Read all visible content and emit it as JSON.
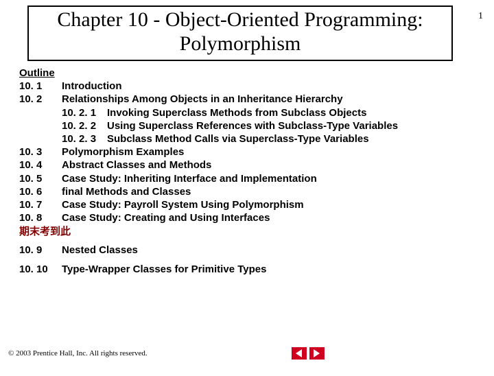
{
  "page_number": "1",
  "title": "Chapter 10 - Object-Oriented Programming: Polymorphism",
  "outline_heading": "Outline",
  "rows": [
    {
      "section": "10. 1",
      "sub": "",
      "text": "Introduction"
    },
    {
      "section": "10. 2",
      "sub": "",
      "text": "Relationships Among Objects in an Inheritance Hierarchy"
    },
    {
      "section": "",
      "sub": "10. 2. 1",
      "text": "Invoking Superclass Methods from Subclass Objects"
    },
    {
      "section": "",
      "sub": "10. 2. 2",
      "text": "Using Superclass References with Subclass-Type Variables"
    },
    {
      "section": "",
      "sub": "10. 2. 3",
      "text": "Subclass Method Calls via Superclass-Type Variables"
    },
    {
      "section": "10. 3",
      "sub": "",
      "text": "Polymorphism Examples"
    },
    {
      "section": "10. 4",
      "sub": "",
      "text": "Abstract Classes and Methods"
    },
    {
      "section": "10. 5",
      "sub": "",
      "text": "Case Study: Inheriting Interface and Implementation"
    },
    {
      "section": "10. 6",
      "sub": "",
      "text": "final Methods and Classes"
    },
    {
      "section": "10. 7",
      "sub": "",
      "text": "Case Study: Payroll System Using Polymorphism"
    },
    {
      "section": "10. 8",
      "sub": "",
      "text": "Case Study: Creating and Using Interfaces"
    }
  ],
  "chinese_note": "期末考到此",
  "post_rows": [
    {
      "section": "10. 9",
      "text": "Nested Classes"
    },
    {
      "section": "10. 10",
      "text": "Type-Wrapper Classes for Primitive Types"
    }
  ],
  "copyright": "© 2003 Prentice Hall, Inc.  All rights reserved.",
  "colors": {
    "note_color": "#800000",
    "nav_bg": "#d00020",
    "nav_arrow": "#ffffff",
    "text": "#000000",
    "background": "#ffffff"
  }
}
